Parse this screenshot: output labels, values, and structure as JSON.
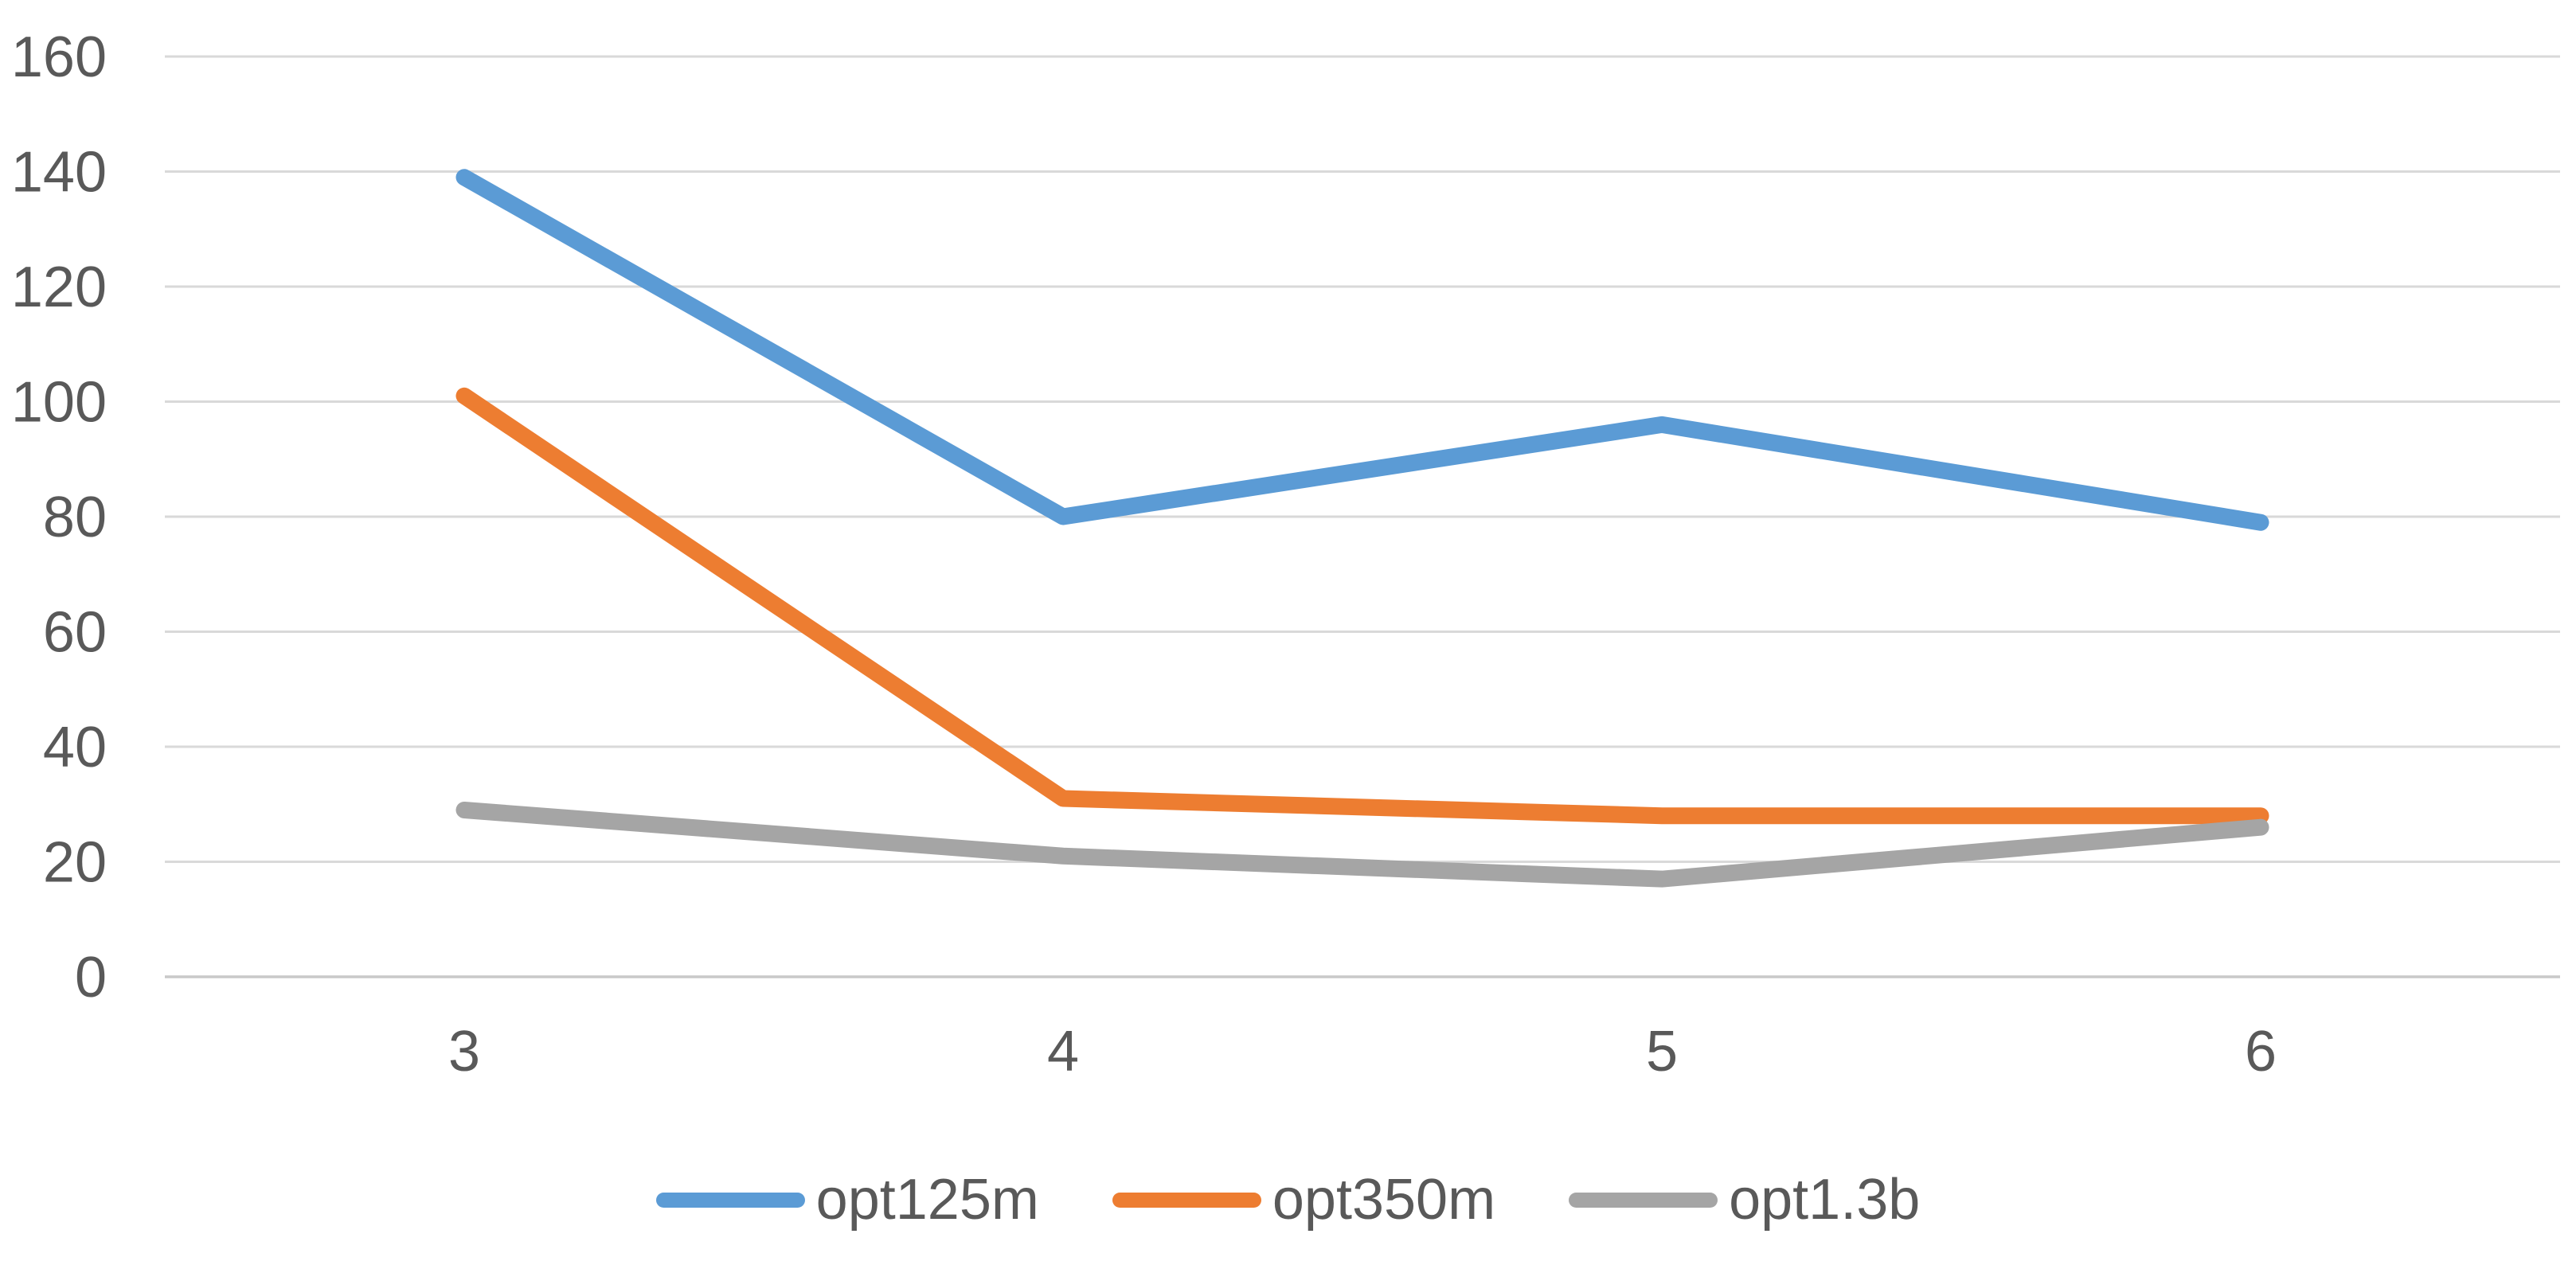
{
  "chart_data": {
    "type": "line",
    "categories": [
      "3",
      "4",
      "5",
      "6"
    ],
    "series": [
      {
        "name": "opt125m",
        "color": "#5B9BD5",
        "values": [
          139,
          80,
          96,
          79
        ]
      },
      {
        "name": "opt350m",
        "color": "#ED7D31",
        "values": [
          101,
          31,
          28,
          28
        ]
      },
      {
        "name": "opt1.3b",
        "color": "#A5A5A5",
        "values": [
          29,
          21,
          17,
          26
        ]
      }
    ],
    "ylim": [
      0,
      160
    ],
    "yticks": [
      0,
      20,
      40,
      60,
      80,
      100,
      120,
      140,
      160
    ],
    "grid": true,
    "legend_position": "bottom-center",
    "axis_text_color": "#595959",
    "gridline_color": "#D9D9D9",
    "axis_line_color": "#C9C9C9",
    "background": "#FFFFFF"
  }
}
